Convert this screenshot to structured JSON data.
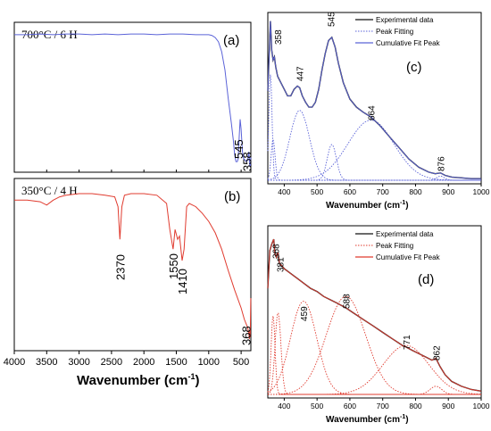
{
  "colors": {
    "blue": "#5b63d8",
    "red": "#e03b2f",
    "black": "#111111"
  },
  "left_axis": {
    "xlabel": "Wavenumber",
    "xunit": "(cm",
    "xunit_sup": "-1",
    "xunit_close": ")",
    "ticks": [
      "4000",
      "3500",
      "3000",
      "2500",
      "2000",
      "1500",
      "1000",
      "500"
    ]
  },
  "right_axis": {
    "xlabel": "Wavenumber (cm",
    "xunit_sup": "-1",
    "xunit_close": ")",
    "ticks": [
      "400",
      "500",
      "600",
      "700",
      "800",
      "900",
      "1000"
    ]
  },
  "legend": {
    "c": [
      "Experimental data",
      "Peak Fitting",
      "Cumulative Fit Peak"
    ],
    "d": [
      "Experimental data",
      "Peak Fitting",
      "Cumulative Fit Peak"
    ]
  },
  "chart_data": [
    {
      "id": "a",
      "type": "line",
      "panel_label": "(a)",
      "condition": "700°C / 6 H",
      "color": "#5b63d8",
      "xlim": [
        4000,
        350
      ],
      "x": [
        4000,
        3800,
        3600,
        3400,
        3200,
        3000,
        2800,
        2600,
        2400,
        2200,
        2000,
        1800,
        1600,
        1400,
        1200,
        1000,
        950,
        900,
        850,
        800,
        750,
        700,
        650,
        620,
        600,
        580,
        560,
        545,
        530,
        515,
        500,
        480,
        460,
        440,
        420,
        400,
        380,
        370,
        365,
        358,
        352
      ],
      "y": [
        0.95,
        0.95,
        0.955,
        0.95,
        0.955,
        0.955,
        0.95,
        0.955,
        0.95,
        0.955,
        0.955,
        0.95,
        0.955,
        0.955,
        0.95,
        0.95,
        0.945,
        0.93,
        0.9,
        0.83,
        0.7,
        0.5,
        0.32,
        0.2,
        0.1,
        0.05,
        0.05,
        0.07,
        0.22,
        0.35,
        0.28,
        0.12,
        0.07,
        0.06,
        0.05,
        0.06,
        0.12,
        0.05,
        0.02,
        0.01,
        0.08
      ],
      "peak_labels": [
        {
          "x": 545,
          "text": "545"
        },
        {
          "x": 358,
          "text": "358"
        }
      ]
    },
    {
      "id": "b",
      "type": "line",
      "panel_label": "(b)",
      "condition": "350°C / 4 H",
      "color": "#e03b2f",
      "xlim": [
        4000,
        350
      ],
      "x": [
        4000,
        3800,
        3600,
        3500,
        3400,
        3300,
        3200,
        3000,
        2800,
        2600,
        2450,
        2400,
        2370,
        2340,
        2300,
        2200,
        2000,
        1800,
        1650,
        1600,
        1550,
        1520,
        1480,
        1450,
        1410,
        1380,
        1340,
        1300,
        1200,
        1100,
        1000,
        900,
        800,
        700,
        600,
        500,
        450,
        400,
        380,
        372,
        368,
        360,
        352
      ],
      "y": [
        0.9,
        0.9,
        0.89,
        0.87,
        0.9,
        0.92,
        0.93,
        0.94,
        0.94,
        0.93,
        0.92,
        0.86,
        0.66,
        0.86,
        0.93,
        0.94,
        0.94,
        0.93,
        0.88,
        0.72,
        0.6,
        0.72,
        0.66,
        0.68,
        0.53,
        0.6,
        0.86,
        0.88,
        0.86,
        0.82,
        0.77,
        0.7,
        0.6,
        0.47,
        0.35,
        0.24,
        0.17,
        0.12,
        0.08,
        0.05,
        0.1,
        0.06,
        0.3
      ],
      "peak_labels": [
        {
          "x": 2370,
          "text": "2370"
        },
        {
          "x": 1550,
          "text": "1550"
        },
        {
          "x": 1410,
          "text": "1410"
        },
        {
          "x": 368,
          "text": "368"
        }
      ]
    },
    {
      "id": "c",
      "type": "line",
      "panel_label": "(c)",
      "color": "#5b63d8",
      "xlim": [
        350,
        1000
      ],
      "x": [
        350,
        355,
        358,
        362,
        366,
        370,
        374,
        380,
        390,
        400,
        410,
        420,
        430,
        440,
        447,
        455,
        465,
        475,
        485,
        495,
        505,
        515,
        525,
        535,
        545,
        555,
        565,
        580,
        600,
        620,
        640,
        664,
        690,
        720,
        750,
        780,
        810,
        840,
        860,
        876,
        890,
        910,
        940,
        970,
        1000
      ],
      "y": [
        0.55,
        0.82,
        0.98,
        0.8,
        0.74,
        0.76,
        0.7,
        0.64,
        0.6,
        0.56,
        0.52,
        0.52,
        0.56,
        0.58,
        0.57,
        0.52,
        0.48,
        0.45,
        0.45,
        0.48,
        0.56,
        0.68,
        0.78,
        0.86,
        0.88,
        0.82,
        0.72,
        0.6,
        0.5,
        0.45,
        0.42,
        0.39,
        0.34,
        0.27,
        0.2,
        0.13,
        0.08,
        0.05,
        0.04,
        0.045,
        0.03,
        0.02,
        0.015,
        0.01,
        0.01
      ],
      "fit_peaks": [
        {
          "center": 358,
          "height": 0.65,
          "width": 5
        },
        {
          "center": 366,
          "height": 0.25,
          "width": 6
        },
        {
          "center": 447,
          "height": 0.43,
          "width": 30
        },
        {
          "center": 545,
          "height": 0.22,
          "width": 14
        },
        {
          "center": 664,
          "height": 0.37,
          "width": 70
        },
        {
          "center": 876,
          "height": 0.025,
          "width": 12
        }
      ],
      "peak_labels": [
        {
          "x": 358,
          "text": "358"
        },
        {
          "x": 447,
          "text": "447"
        },
        {
          "x": 545,
          "text": "545"
        },
        {
          "x": 664,
          "text": "664"
        },
        {
          "x": 876,
          "text": "876"
        }
      ],
      "legend": [
        "Experimental data",
        "Peak Fitting",
        "Cumulative Fit Peak"
      ]
    },
    {
      "id": "d",
      "type": "line",
      "panel_label": "(d)",
      "color": "#e03b2f",
      "xlim": [
        350,
        1000
      ],
      "x": [
        350,
        356,
        362,
        368,
        372,
        376,
        381,
        386,
        392,
        400,
        420,
        440,
        460,
        480,
        500,
        520,
        540,
        560,
        588,
        610,
        640,
        670,
        700,
        730,
        760,
        771,
        790,
        810,
        830,
        850,
        862,
        875,
        890,
        910,
        940,
        970,
        1000
      ],
      "y": [
        0.65,
        0.88,
        0.92,
        0.95,
        0.86,
        0.84,
        0.87,
        0.8,
        0.79,
        0.77,
        0.74,
        0.71,
        0.68,
        0.65,
        0.63,
        0.6,
        0.58,
        0.56,
        0.53,
        0.5,
        0.46,
        0.42,
        0.38,
        0.34,
        0.3,
        0.29,
        0.27,
        0.25,
        0.23,
        0.21,
        0.22,
        0.17,
        0.12,
        0.08,
        0.05,
        0.03,
        0.02
      ],
      "fit_peaks": [
        {
          "center": 366,
          "height": 0.48,
          "width": 6
        },
        {
          "center": 381,
          "height": 0.5,
          "width": 9
        },
        {
          "center": 459,
          "height": 0.57,
          "width": 40
        },
        {
          "center": 588,
          "height": 0.6,
          "width": 60
        },
        {
          "center": 771,
          "height": 0.3,
          "width": 70
        },
        {
          "center": 862,
          "height": 0.05,
          "width": 18
        }
      ],
      "peak_labels": [
        {
          "x": 368,
          "text": "368"
        },
        {
          "x": 381,
          "text": "381"
        },
        {
          "x": 459,
          "text": "459"
        },
        {
          "x": 588,
          "text": "588"
        },
        {
          "x": 771,
          "text": "771"
        },
        {
          "x": 862,
          "text": "862"
        }
      ],
      "legend": [
        "Experimental data",
        "Peak Fitting",
        "Cumulative Fit Peak"
      ]
    }
  ]
}
